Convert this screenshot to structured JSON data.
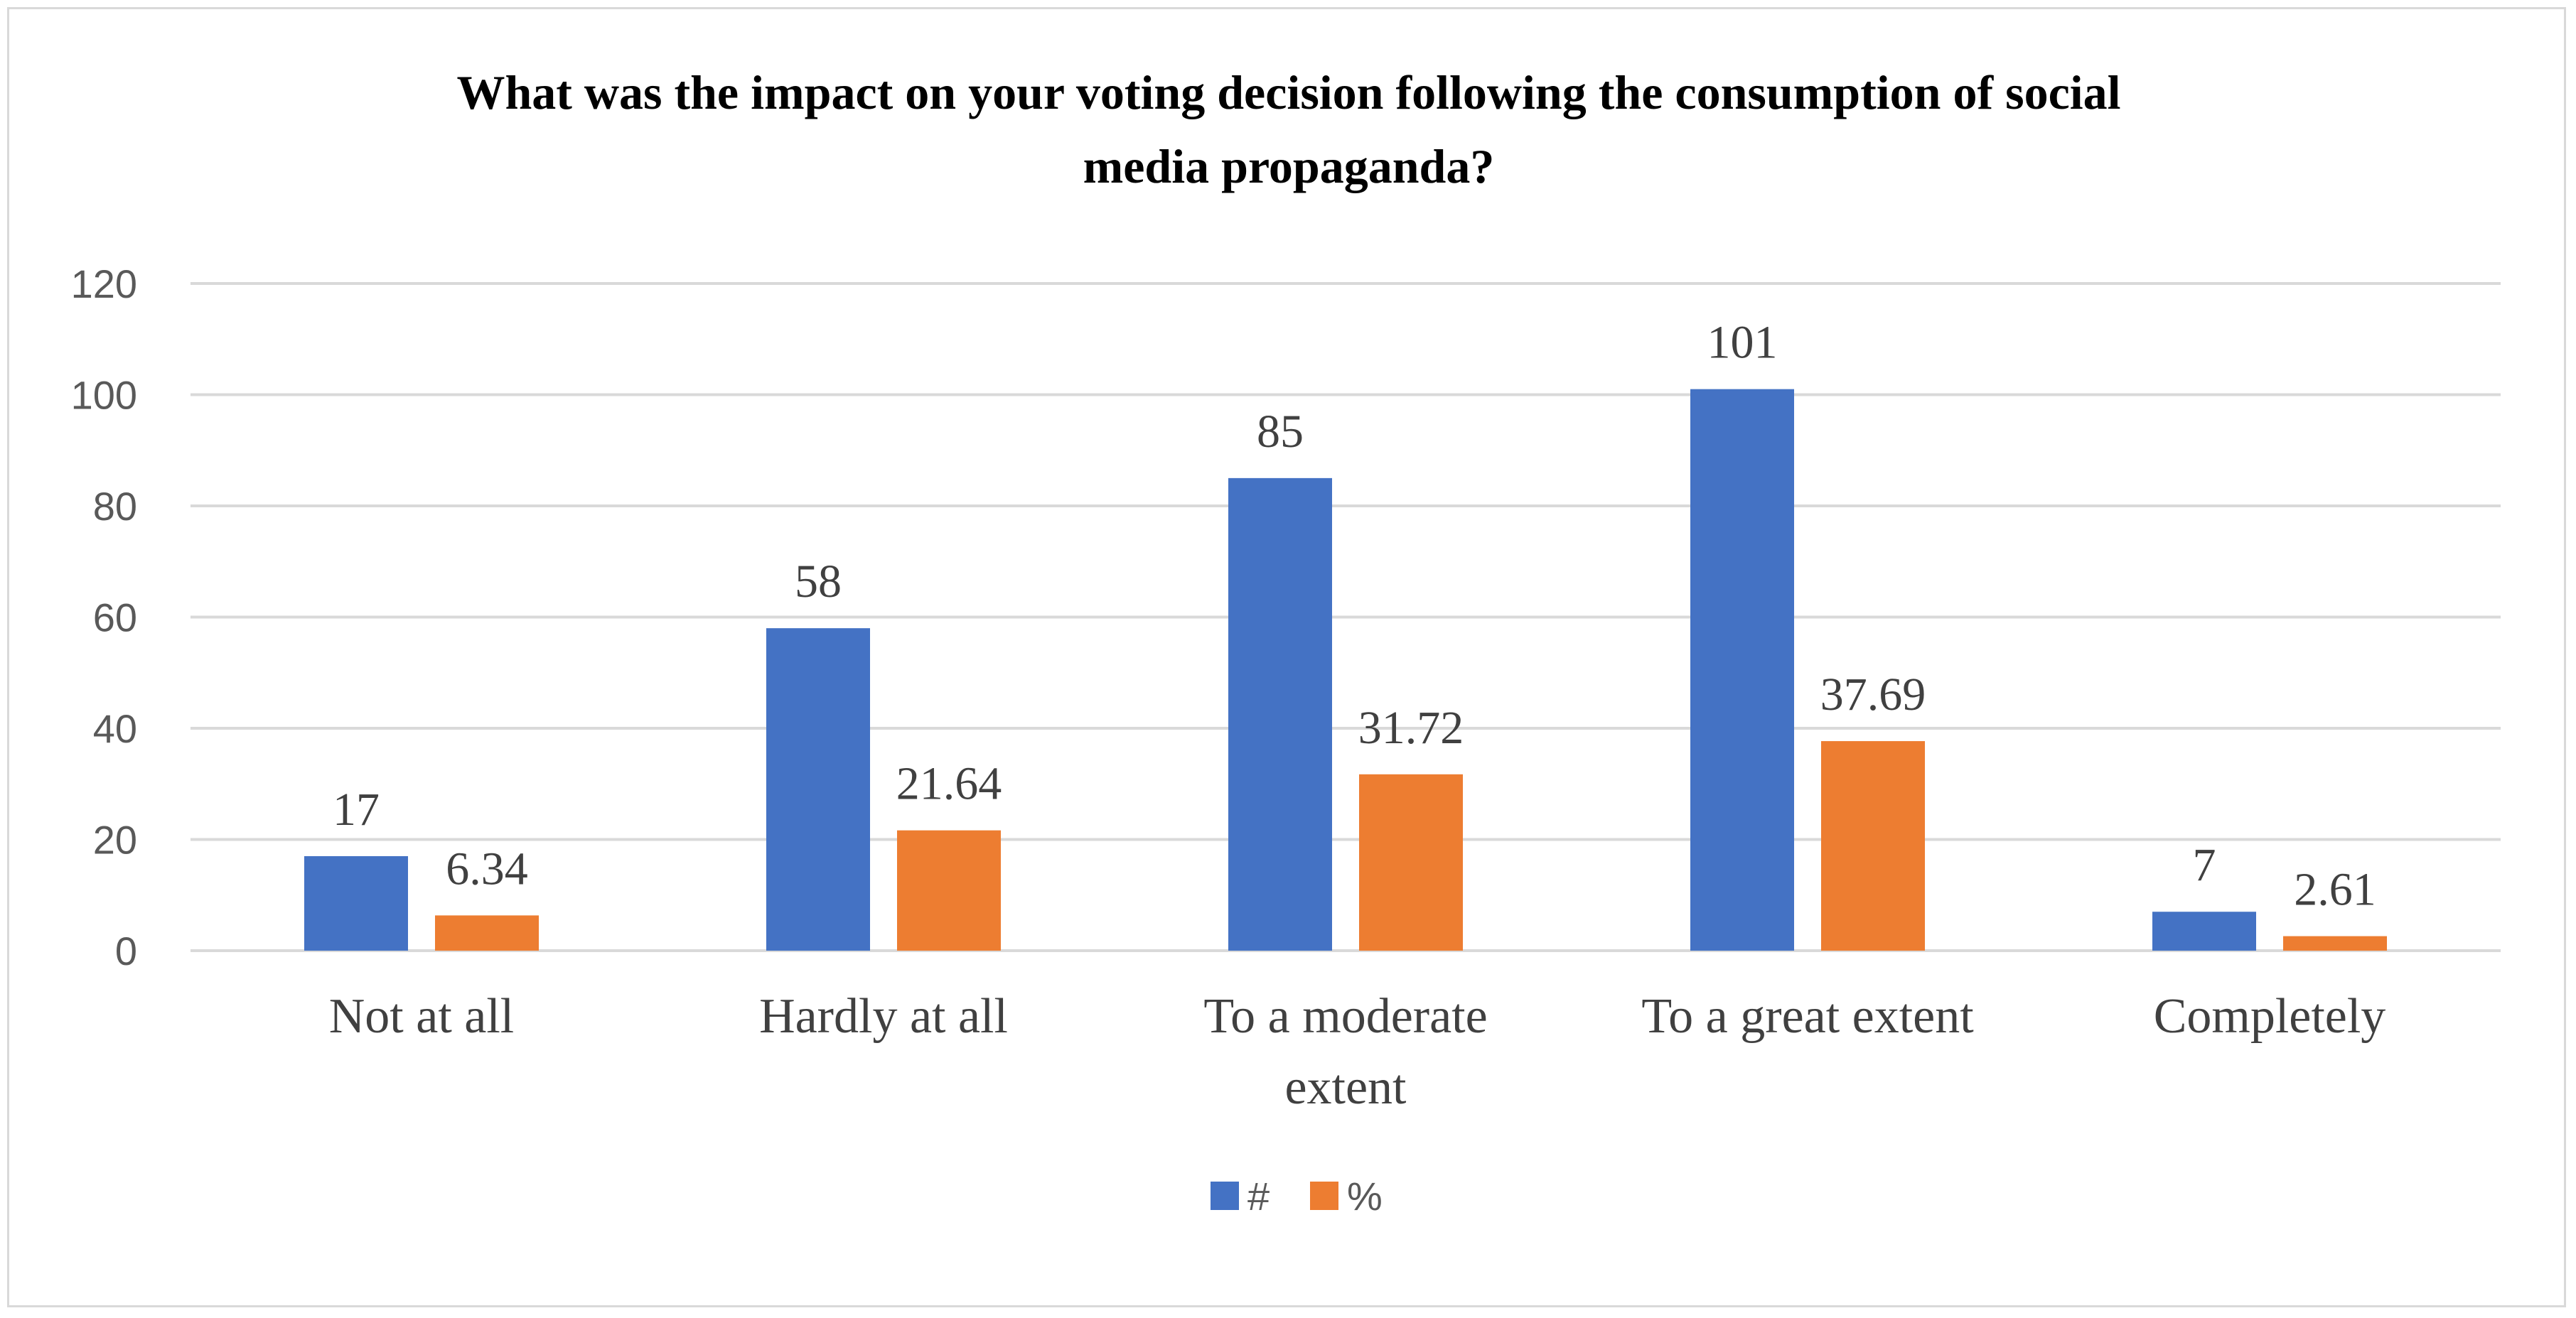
{
  "chart_data": {
    "type": "bar",
    "title": "What was the impact on your voting decision following the consumption of social media propaganda?",
    "title_lines": [
      "What was the impact on your voting decision following the consumption of social",
      "media propaganda?"
    ],
    "categories": [
      "Not at all",
      "Hardly at all",
      "To a moderate extent",
      "To a great extent",
      "Completely"
    ],
    "category_lines": [
      [
        "Not at all"
      ],
      [
        "Hardly at all"
      ],
      [
        "To a moderate",
        "extent"
      ],
      [
        "To a great extent"
      ],
      [
        "Completely"
      ]
    ],
    "series": [
      {
        "name": "#",
        "values": [
          17,
          58,
          85,
          101,
          7
        ],
        "labels": [
          "17",
          "58",
          "85",
          "101",
          "7"
        ],
        "color": "#4472c4"
      },
      {
        "name": "%",
        "values": [
          6.34,
          21.64,
          31.72,
          37.69,
          2.61
        ],
        "labels": [
          "6.34",
          "21.64",
          "31.72",
          "37.69",
          "2.61"
        ],
        "color": "#ed7d31"
      }
    ],
    "ylim": [
      0,
      120
    ],
    "yticks": [
      0,
      20,
      40,
      60,
      80,
      100,
      120
    ],
    "xlabel": "",
    "ylabel": "",
    "grid": true,
    "legend_position": "bottom-center"
  },
  "colors": {
    "gridline": "#d9d9d9",
    "axis": "#d9d9d9"
  }
}
